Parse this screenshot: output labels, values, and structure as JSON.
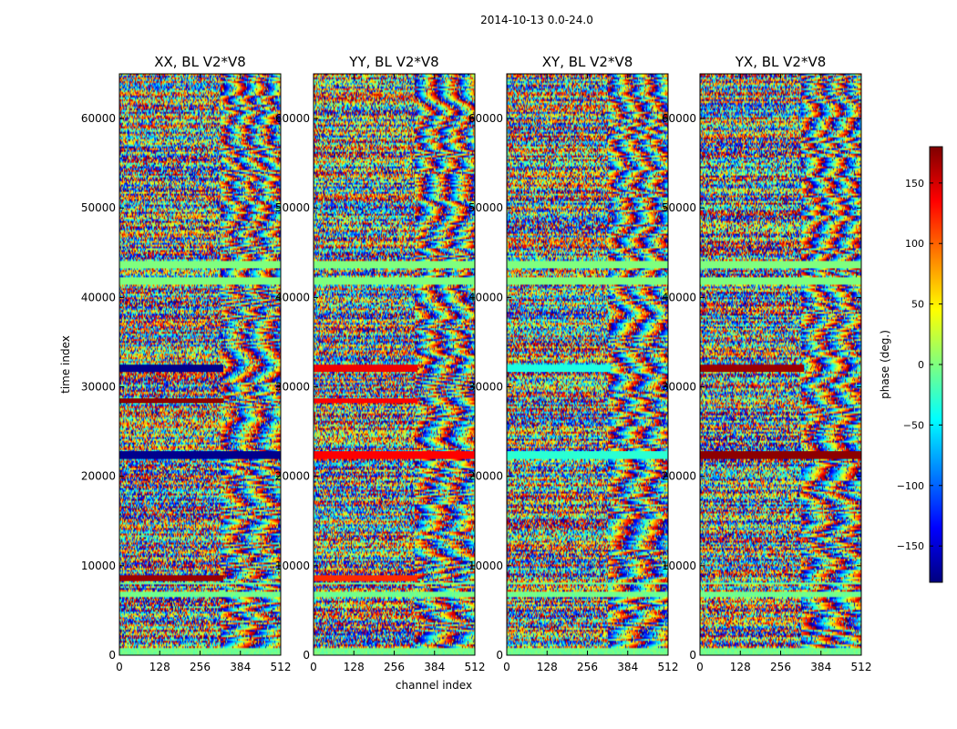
{
  "figure": {
    "suptitle": "2014-10-13 0.0-24.0",
    "xlabel": "channel index",
    "ylabel": "time index"
  },
  "colorbar": {
    "label": "phase (deg.)",
    "range": [
      -180,
      180
    ],
    "ticks": [
      -150,
      -100,
      -50,
      0,
      50,
      100,
      150
    ],
    "tick_labels": [
      "−150",
      "−100",
      "−50",
      "0",
      "50",
      "100",
      "150"
    ],
    "colormap": [
      "#00007f",
      "#0000ff",
      "#007fff",
      "#00ffff",
      "#7fff7f",
      "#ffff00",
      "#ff7f00",
      "#ff0000",
      "#7f0000"
    ]
  },
  "chart_data": [
    {
      "type": "heatmap",
      "title": "XX, BL V2*V8",
      "xlabel": "channel index",
      "ylabel": "time index",
      "xlim": [
        0,
        512
      ],
      "ylim": [
        0,
        65000
      ],
      "xticks": [
        0,
        128,
        256,
        384,
        512
      ],
      "yticks": [
        0,
        10000,
        20000,
        30000,
        40000,
        50000,
        60000
      ],
      "value_range": [
        -180,
        180
      ],
      "flat_bands": [
        {
          "t": [
            41500,
            42200
          ],
          "phase": 0,
          "channels": [
            0,
            512
          ]
        },
        {
          "t": [
            43300,
            44000
          ],
          "phase": 0,
          "channels": [
            0,
            512
          ]
        },
        {
          "t": [
            31700,
            32400
          ],
          "phase": -175,
          "channels": [
            0,
            330
          ]
        },
        {
          "t": [
            22000,
            22800
          ],
          "phase": -175,
          "channels": [
            0,
            512
          ]
        },
        {
          "t": [
            28200,
            28700
          ],
          "phase": 175,
          "channels": [
            0,
            330
          ]
        },
        {
          "t": [
            8300,
            8900
          ],
          "phase": 170,
          "channels": [
            0,
            330
          ]
        }
      ]
    },
    {
      "type": "heatmap",
      "title": "YY, BL V2*V8",
      "xlabel": "channel index",
      "ylabel": "time index",
      "xlim": [
        0,
        512
      ],
      "ylim": [
        0,
        65000
      ],
      "xticks": [
        0,
        128,
        256,
        384,
        512
      ],
      "yticks": [
        0,
        10000,
        20000,
        30000,
        40000,
        50000,
        60000
      ],
      "value_range": [
        -180,
        180
      ],
      "flat_bands": [
        {
          "t": [
            41500,
            42200
          ],
          "phase": 0,
          "channels": [
            0,
            512
          ]
        },
        {
          "t": [
            43300,
            44000
          ],
          "phase": 0,
          "channels": [
            0,
            512
          ]
        },
        {
          "t": [
            31700,
            32400
          ],
          "phase": 140,
          "channels": [
            0,
            330
          ]
        },
        {
          "t": [
            22000,
            22800
          ],
          "phase": 135,
          "channels": [
            0,
            512
          ]
        },
        {
          "t": [
            28200,
            28700
          ],
          "phase": 135,
          "channels": [
            0,
            330
          ]
        },
        {
          "t": [
            8300,
            8900
          ],
          "phase": 120,
          "channels": [
            0,
            330
          ]
        }
      ]
    },
    {
      "type": "heatmap",
      "title": "XY, BL V2*V8",
      "xlabel": "channel index",
      "ylabel": "time index",
      "xlim": [
        0,
        512
      ],
      "ylim": [
        0,
        65000
      ],
      "xticks": [
        0,
        128,
        256,
        384,
        512
      ],
      "yticks": [
        0,
        10000,
        20000,
        30000,
        40000,
        50000,
        60000
      ],
      "value_range": [
        -180,
        180
      ],
      "flat_bands": [
        {
          "t": [
            41500,
            42200
          ],
          "phase": 0,
          "channels": [
            0,
            512
          ]
        },
        {
          "t": [
            43300,
            44000
          ],
          "phase": 0,
          "channels": [
            0,
            512
          ]
        },
        {
          "t": [
            22000,
            22800
          ],
          "phase": -30,
          "channels": [
            0,
            512
          ]
        },
        {
          "t": [
            31700,
            32400
          ],
          "phase": -35,
          "channels": [
            0,
            330
          ]
        }
      ]
    },
    {
      "type": "heatmap",
      "title": "YX, BL V2*V8",
      "xlabel": "channel index",
      "ylabel": "time index",
      "xlim": [
        0,
        512
      ],
      "ylim": [
        0,
        65000
      ],
      "xticks": [
        0,
        128,
        256,
        384,
        512
      ],
      "yticks": [
        0,
        10000,
        20000,
        30000,
        40000,
        50000,
        60000
      ],
      "value_range": [
        -180,
        180
      ],
      "flat_bands": [
        {
          "t": [
            41500,
            42200
          ],
          "phase": 0,
          "channels": [
            0,
            512
          ]
        },
        {
          "t": [
            43300,
            44000
          ],
          "phase": 0,
          "channels": [
            0,
            512
          ]
        },
        {
          "t": [
            31700,
            32400
          ],
          "phase": 170,
          "channels": [
            0,
            330
          ]
        },
        {
          "t": [
            22000,
            22800
          ],
          "phase": 175,
          "channels": [
            0,
            512
          ]
        }
      ]
    }
  ]
}
